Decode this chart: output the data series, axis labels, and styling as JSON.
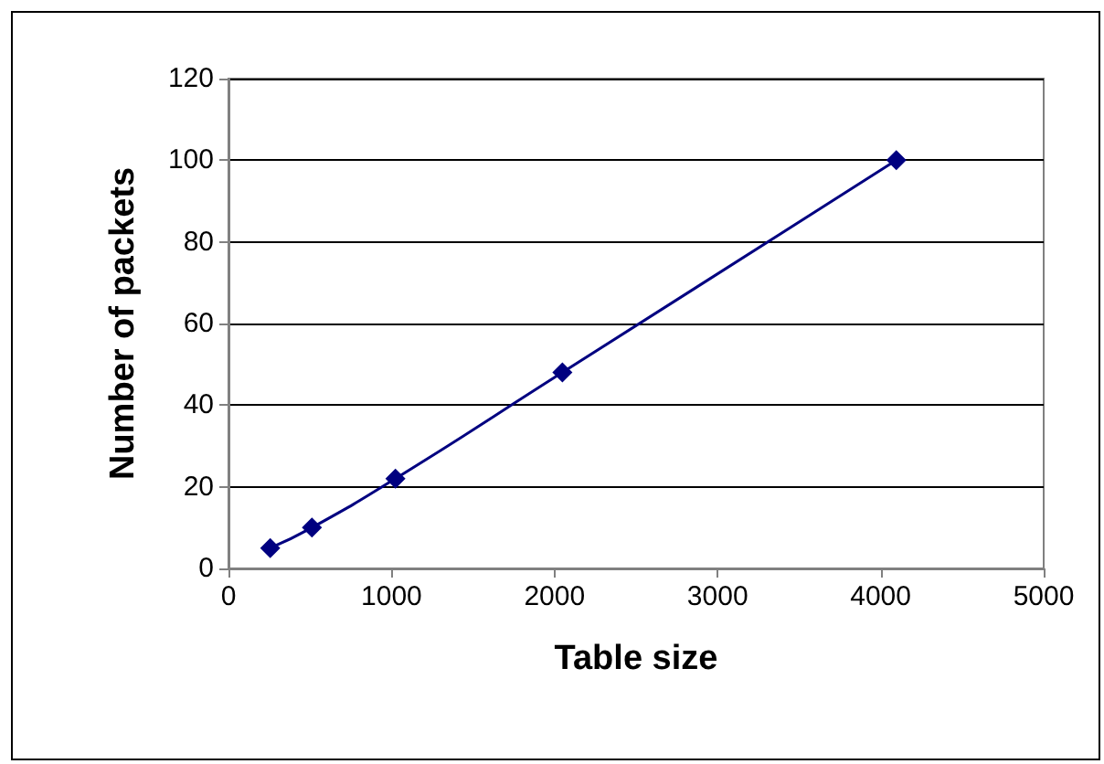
{
  "chart_data": {
    "type": "line",
    "xlabel": "Table size",
    "ylabel": "Number of packets",
    "x": [
      256,
      512,
      1024,
      2048,
      4096
    ],
    "series": [
      {
        "color": "#000080",
        "values": [
          5,
          10,
          22,
          48,
          100
        ]
      }
    ],
    "xlim": [
      0,
      5000
    ],
    "xticks": [
      0,
      1000,
      2000,
      3000,
      4000,
      5000
    ],
    "ylim": [
      0,
      120
    ],
    "yticks": [
      0,
      20,
      40,
      60,
      80,
      100,
      120
    ],
    "grid": "y",
    "marker": "diamond",
    "line_style": "solid"
  }
}
